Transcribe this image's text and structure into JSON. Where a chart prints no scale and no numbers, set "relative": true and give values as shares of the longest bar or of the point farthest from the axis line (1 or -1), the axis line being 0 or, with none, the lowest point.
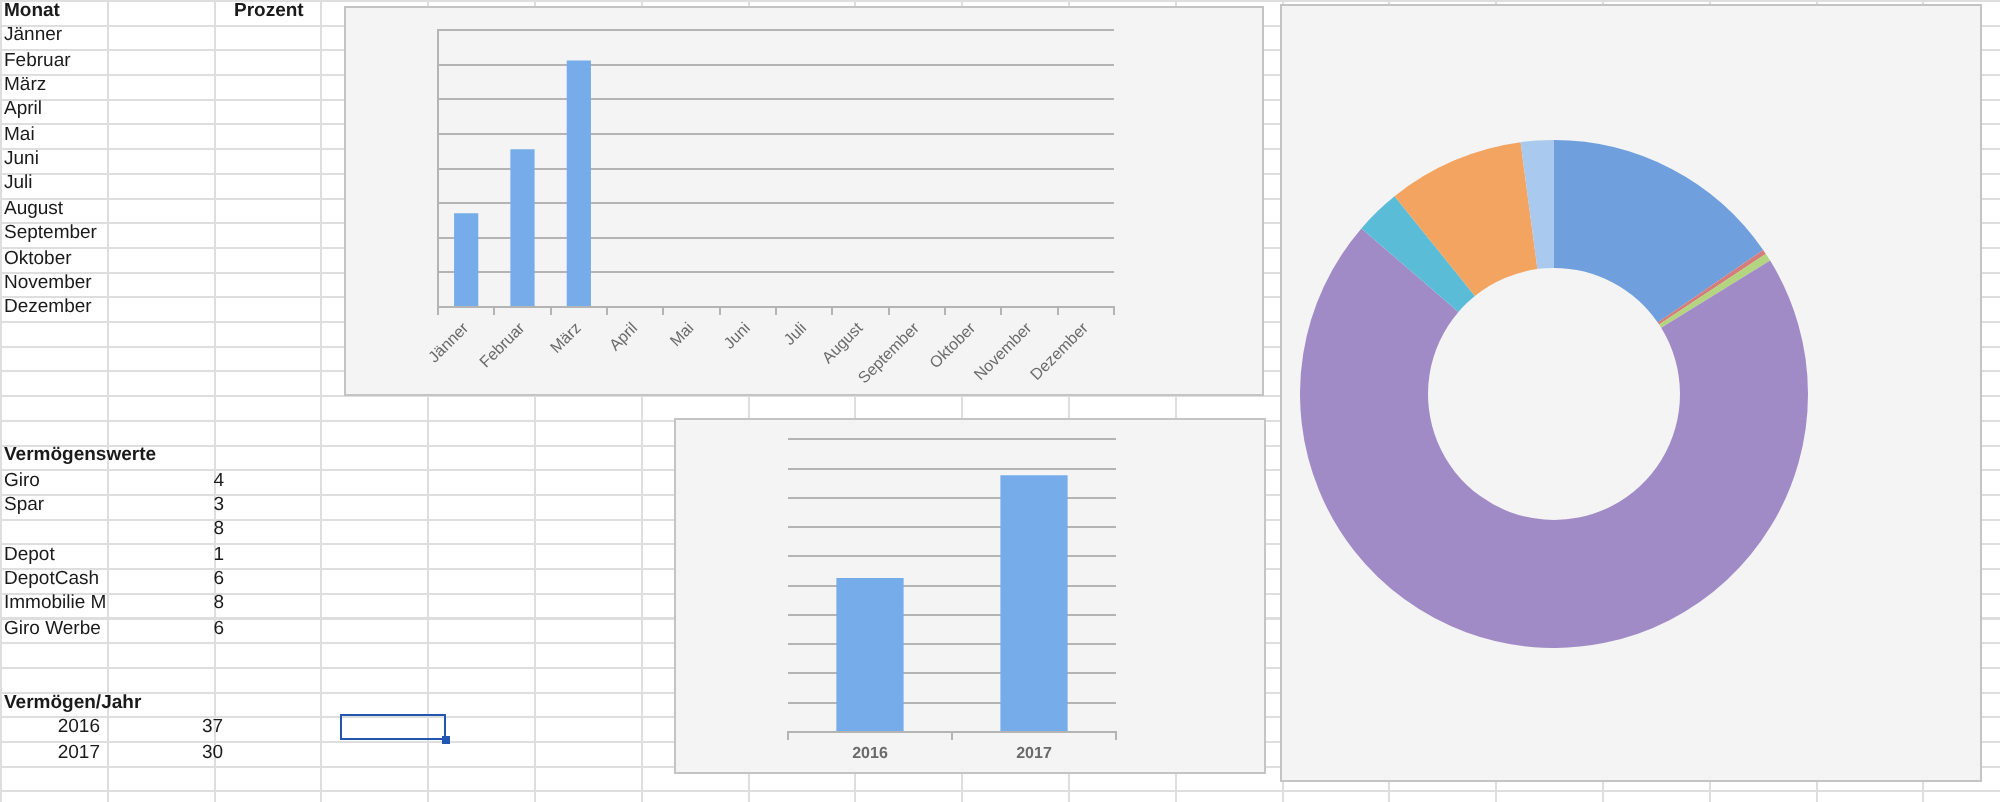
{
  "chart_data": [
    {
      "type": "other",
      "annotations": [
        "Monat",
        "Prozent",
        "Jänner",
        "Februar",
        "März",
        "April",
        "Mai",
        "Juni",
        "Juli",
        "August",
        "September",
        "Oktober",
        "November",
        "Dezember",
        "Vermögenswerte",
        "Giro",
        "4",
        "Spar",
        "3",
        "8",
        "Depot",
        "1",
        "DepotCash",
        "6",
        "Immobilie M",
        "8",
        "Giro Werbe",
        "6",
        "Vermögen/Jahr",
        "2016",
        "37",
        "2017",
        "30"
      ]
    },
    {
      "type": "bar",
      "categories": [
        "Jänner",
        "Februar",
        "März",
        "April",
        "Mai",
        "Juni",
        "Juli",
        "August",
        "September",
        "Oktober",
        "November",
        "Dezember"
      ],
      "values": [
        0.38,
        0.64,
        1,
        null,
        null,
        null,
        null,
        null,
        null,
        null,
        null,
        null
      ],
      "color": "#77acea",
      "relative": true,
      "grid": "y"
    },
    {
      "type": "bar",
      "categories": [
        "2016",
        "2017"
      ],
      "values": [
        0.6,
        1
      ],
      "color": "#77acea",
      "relative": true,
      "grid": "y"
    },
    {
      "type": "donut",
      "categories": [
        null,
        null,
        null,
        null,
        null,
        null,
        null
      ],
      "values": [
        15.4,
        0.3,
        0.5,
        70.1,
        2.9,
        8.7,
        2.1
      ],
      "colors": [
        "#6f9fdc",
        "#d47d7a",
        "#b3d57f",
        "#a18bc6",
        "#5bbcd8",
        "#f3a460",
        "#aac9ef"
      ]
    }
  ]
}
